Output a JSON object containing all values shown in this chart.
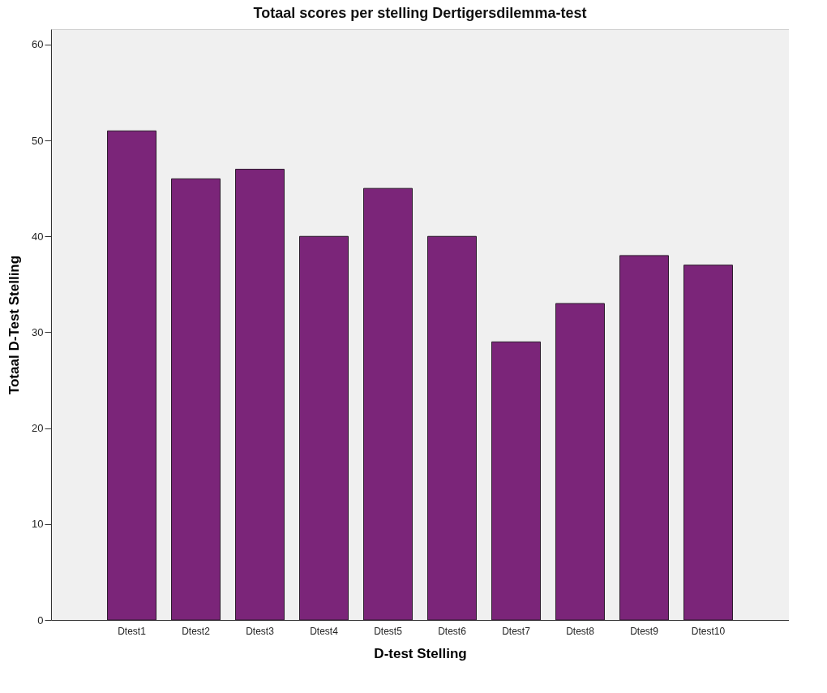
{
  "chart_data": {
    "type": "bar",
    "title": "Totaal scores per stelling Dertigersdilemma-test",
    "xlabel": "D-test Stelling",
    "ylabel": "Totaal D-Test Stelling",
    "categories": [
      "Dtest1",
      "Dtest2",
      "Dtest3",
      "Dtest4",
      "Dtest5",
      "Dtest6",
      "Dtest7",
      "Dtest8",
      "Dtest9",
      "Dtest10"
    ],
    "values": [
      51,
      46,
      47,
      40,
      45,
      40,
      29,
      33,
      38,
      37
    ],
    "color": "#7b2579",
    "ylim": [
      0,
      61.6
    ],
    "yticks": [
      0,
      10,
      20,
      30,
      40,
      50,
      60
    ],
    "grid": false
  }
}
